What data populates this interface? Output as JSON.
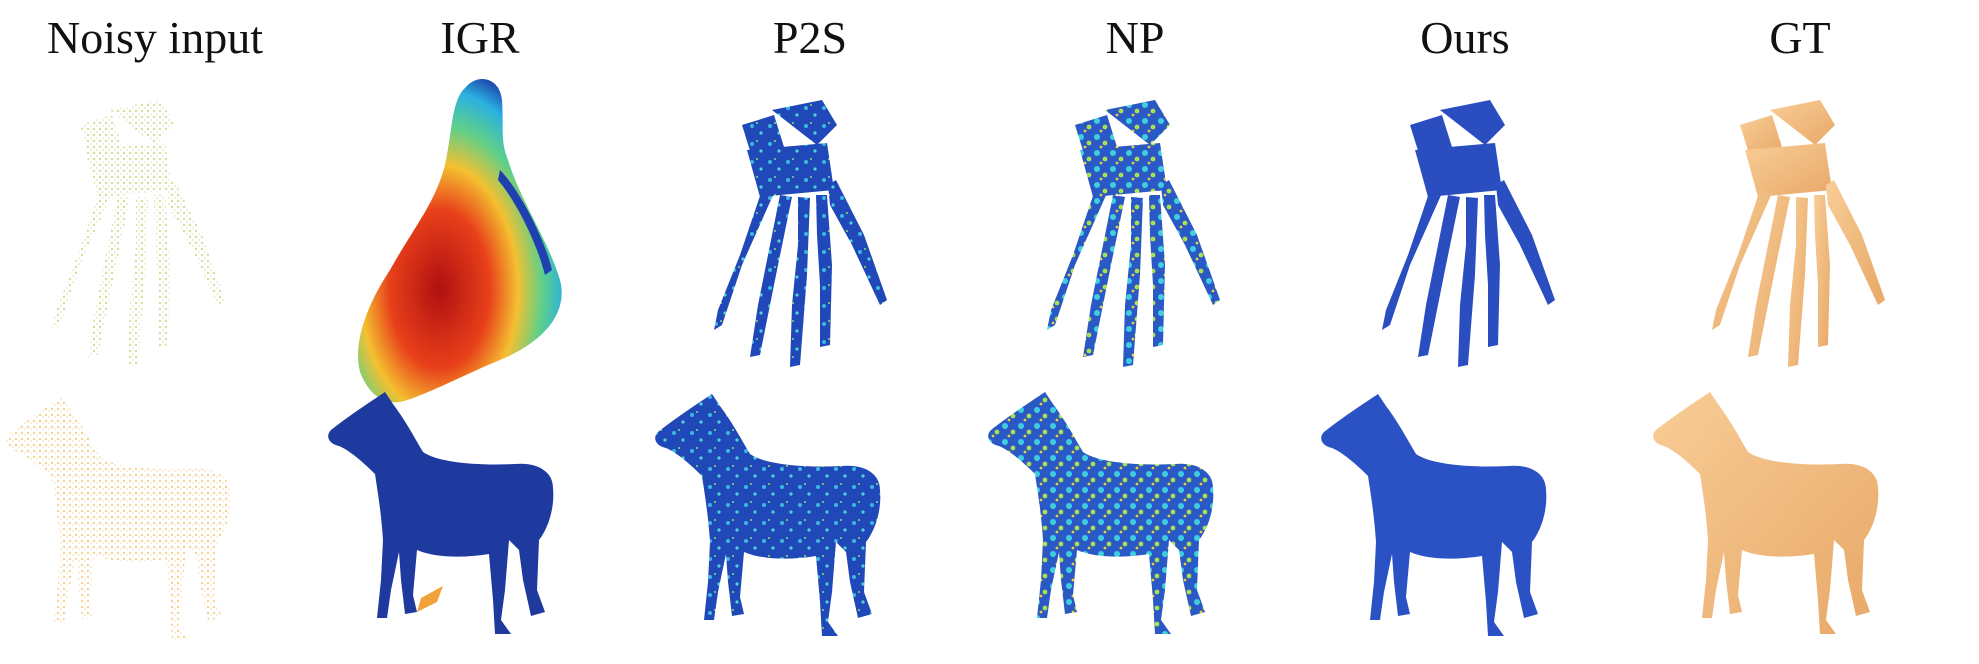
{
  "figure": {
    "columns": [
      {
        "key": "noisy",
        "label": "Noisy input"
      },
      {
        "key": "igr",
        "label": "IGR"
      },
      {
        "key": "p2s",
        "label": "P2S"
      },
      {
        "key": "np",
        "label": "NP"
      },
      {
        "key": "ours",
        "label": "Ours"
      },
      {
        "key": "gt",
        "label": "GT"
      }
    ],
    "rows": [
      {
        "key": "hand",
        "subject": "hand-skeleton"
      },
      {
        "key": "horse",
        "subject": "horse"
      }
    ],
    "colors": {
      "noisy_hand": "#d9de9c",
      "noisy_horse": "#f6d79c",
      "error_low": "#1f3fb0",
      "error_mid": "#3ad0e0",
      "error_high": "#d81c10",
      "gt": "#f4bf82"
    }
  }
}
